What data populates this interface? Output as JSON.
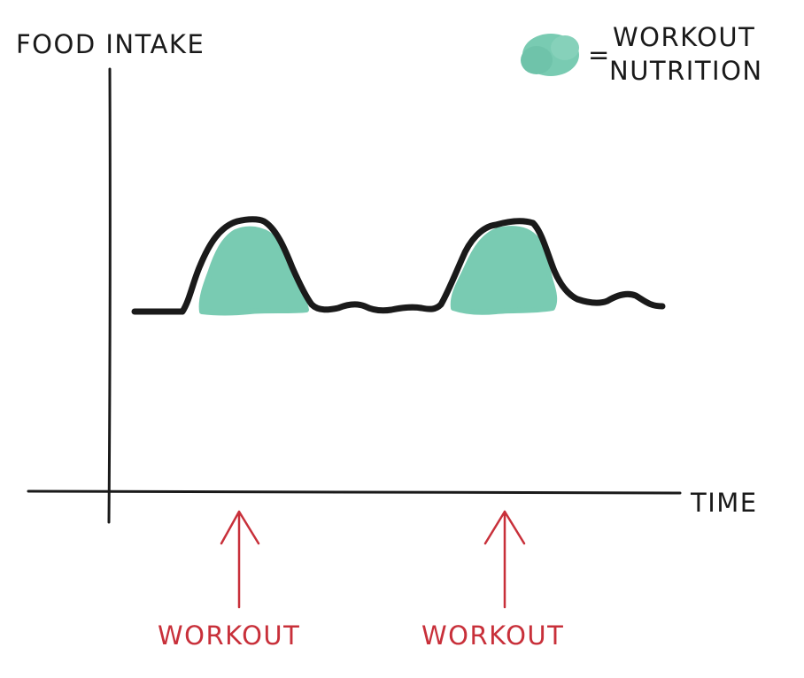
{
  "axes": {
    "y_label": "FOOD INTAKE",
    "x_label": "TIME"
  },
  "legend": {
    "equals": "=",
    "line1": "WORKOUT",
    "line2": "NUTRITION"
  },
  "markers": [
    {
      "label": "WORKOUT"
    },
    {
      "label": "WORKOUT"
    }
  ],
  "colors": {
    "ink": "#1a1a1a",
    "nutrition_fill": "#79cbb2",
    "workout_marker": "#c8303a",
    "background": "#ffffff"
  },
  "icons": {
    "legend_swatch": "green-blob-icon",
    "marker": "up-arrow-icon"
  }
}
